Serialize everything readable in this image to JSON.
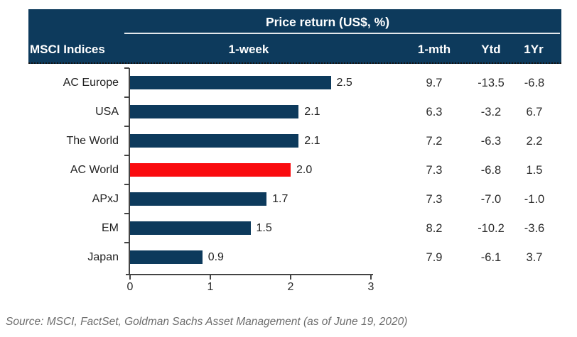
{
  "header": {
    "title": "Price return (US$, %)",
    "row_header": "MSCI Indices",
    "columns": [
      "1-week",
      "1-mth",
      "Ytd",
      "1Yr"
    ]
  },
  "chart_data": {
    "type": "bar",
    "orientation": "horizontal",
    "title": "Price return (US$, %)",
    "categories": [
      "AC Europe",
      "USA",
      "The World",
      "AC World",
      "APxJ",
      "EM",
      "Japan"
    ],
    "series": [
      {
        "name": "1-week",
        "values": [
          2.5,
          2.1,
          2.1,
          2.0,
          1.7,
          1.5,
          0.9
        ]
      },
      {
        "name": "1-mth",
        "values": [
          9.7,
          6.3,
          7.2,
          7.3,
          7.3,
          8.2,
          7.9
        ]
      },
      {
        "name": "Ytd",
        "values": [
          -13.5,
          -3.2,
          -6.3,
          -6.8,
          -7.0,
          -10.2,
          -6.1
        ]
      },
      {
        "name": "1Yr",
        "values": [
          -6.8,
          6.7,
          2.2,
          1.5,
          -1.0,
          -3.6,
          3.7
        ]
      }
    ],
    "xlim": [
      0,
      3
    ],
    "x_ticks": [
      0,
      1,
      2,
      3
    ],
    "highlighted_category": "AC World",
    "bar_color": "#0d3a5c",
    "highlight_color": "#fa0b0f",
    "legend": "none",
    "grid": "off"
  },
  "colors": {
    "header_bg": "#0d3a5c",
    "header_text": "#ffffff",
    "axis": "#444444",
    "label_text": "#222222",
    "source_text": "#6d6d6d"
  },
  "source": "Source: MSCI, FactSet, Goldman Sachs Asset Management (as of June 19, 2020)"
}
